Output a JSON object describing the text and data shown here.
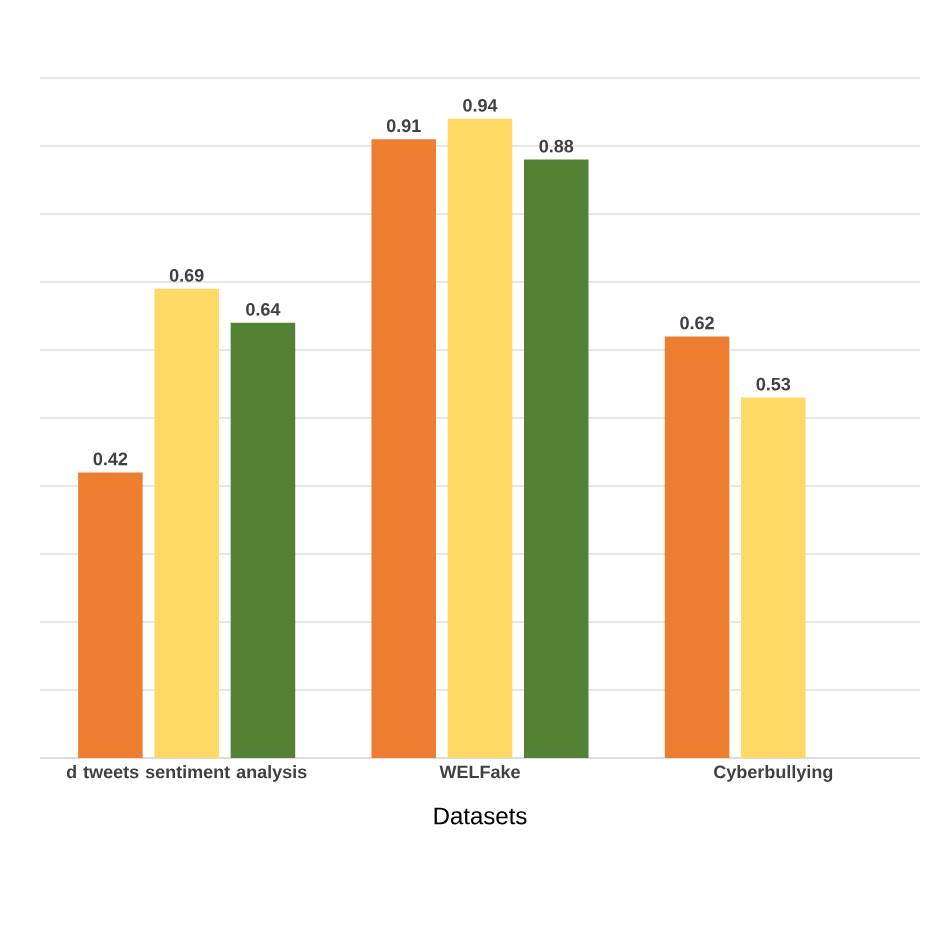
{
  "chart_data": {
    "type": "bar",
    "xlabel": "Datasets",
    "categories": [
      "d tweets sentiment analysis",
      "WELFake",
      "Cyberbullying"
    ],
    "series": [
      {
        "color": "#ed7d31",
        "values": [
          0.42,
          0.91,
          0.62
        ]
      },
      {
        "color": "#ffd966",
        "values": [
          0.69,
          0.94,
          0.53
        ]
      },
      {
        "color": "#548235",
        "values": [
          0.64,
          0.88,
          null
        ]
      }
    ],
    "data_labels": true,
    "ylim": [
      0,
      1.0
    ],
    "yticks": [
      {
        "value": 0,
        "label": null
      },
      {
        "value": 0.1,
        "label": null
      },
      {
        "value": 0.2,
        "label": null
      },
      {
        "value": 0.3,
        "label": null
      },
      {
        "value": 0.4,
        "label": null
      },
      {
        "value": 0.5,
        "label": null
      },
      {
        "value": 0.6,
        "label": null
      },
      {
        "value": 0.7,
        "label": null
      },
      {
        "value": 0.8,
        "label": null
      },
      {
        "value": 0.9,
        "label": null
      },
      {
        "value": 1.0,
        "label": null
      }
    ],
    "grid": "y",
    "tick_labels": "x"
  }
}
